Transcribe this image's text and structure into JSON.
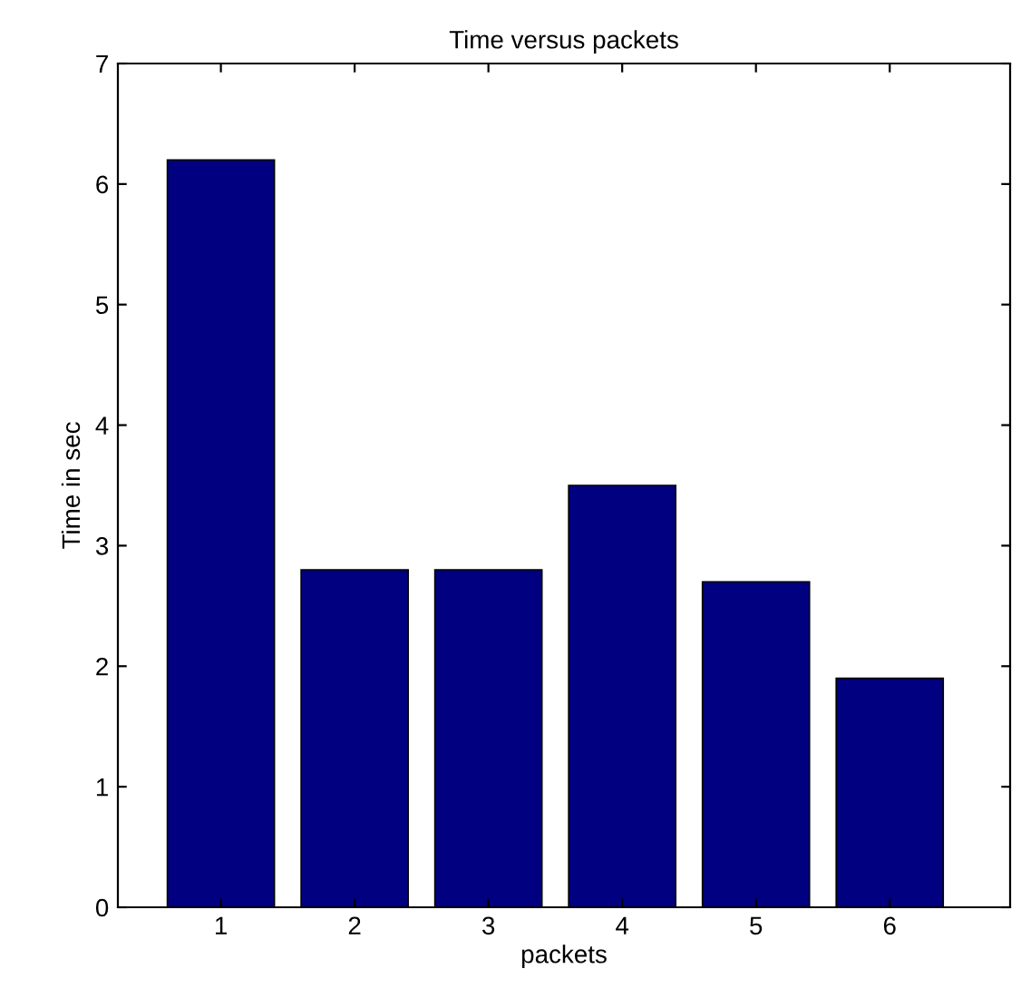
{
  "chart_data": {
    "type": "bar",
    "title": "Time versus packets",
    "xlabel": "packets",
    "ylabel": "Time in sec",
    "categories": [
      "1",
      "2",
      "3",
      "4",
      "5",
      "6"
    ],
    "values": [
      6.2,
      2.8,
      2.8,
      3.5,
      2.7,
      1.9
    ],
    "color": "#000080",
    "ylim": [
      0,
      7
    ],
    "yticks": [
      0,
      1,
      2,
      3,
      4,
      5,
      6,
      7
    ],
    "grid": false,
    "legend": false
  }
}
